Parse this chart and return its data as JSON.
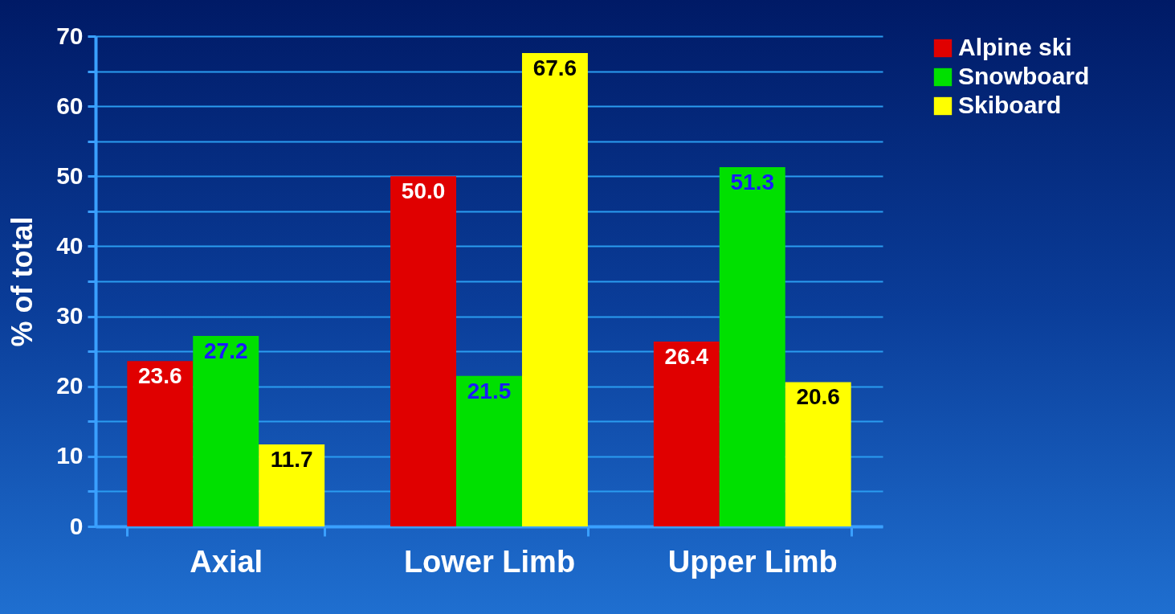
{
  "chart_data": {
    "type": "bar",
    "ylabel": "% of total",
    "categories": [
      "Axial",
      "Lower Limb",
      "Upper Limb"
    ],
    "series": [
      {
        "name": "Alpine ski",
        "color": "#e00000",
        "values": [
          23.6,
          50.0,
          26.4
        ],
        "value_labels": [
          "23.6",
          "50.0",
          "26.4"
        ]
      },
      {
        "name": "Snowboard",
        "color": "#00e000",
        "values": [
          27.2,
          21.5,
          51.3
        ],
        "value_labels": [
          "27.2",
          "21.5",
          "51.3"
        ]
      },
      {
        "name": "Skiboard",
        "color": "#ffff00",
        "values": [
          11.7,
          67.6,
          20.6
        ],
        "value_labels": [
          "11.7",
          "67.6",
          "20.6"
        ]
      }
    ],
    "ylim": [
      0,
      70
    ],
    "yticks": [
      0,
      {
        "value": 5,
        "label": null
      },
      10,
      {
        "value": 15,
        "label": null
      },
      20,
      {
        "value": 25,
        "label": null
      },
      30,
      {
        "value": 35,
        "label": null
      },
      40,
      {
        "value": 45,
        "label": null
      },
      50,
      {
        "value": 55,
        "label": null
      },
      60,
      {
        "value": 65,
        "label": null
      },
      70
    ],
    "grid": true,
    "legend": "right"
  }
}
